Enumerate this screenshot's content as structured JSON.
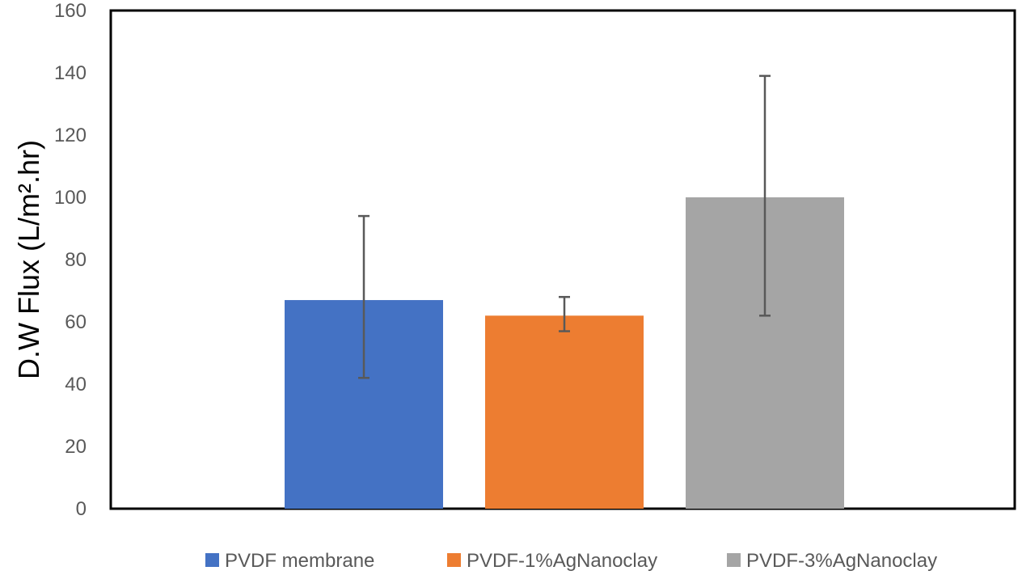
{
  "chart_data": {
    "type": "bar",
    "title": "",
    "xlabel": "",
    "ylabel": "D.W Flux (L/m².hr)",
    "ylim": [
      0,
      160
    ],
    "yticks": [
      0,
      20,
      40,
      60,
      80,
      100,
      120,
      140,
      160
    ],
    "grid": false,
    "legend_position": "bottom",
    "series": [
      {
        "name": "PVDF membrane",
        "value": 67,
        "error_low": 42,
        "error_high": 94,
        "color": "#4472C4"
      },
      {
        "name": "PVDF-1%AgNanoclay",
        "value": 62,
        "error_low": 57,
        "error_high": 68,
        "color": "#ED7D31"
      },
      {
        "name": "PVDF-3%AgNanoclay",
        "value": 100,
        "error_low": 62,
        "error_high": 139,
        "color": "#A5A5A5"
      }
    ]
  }
}
